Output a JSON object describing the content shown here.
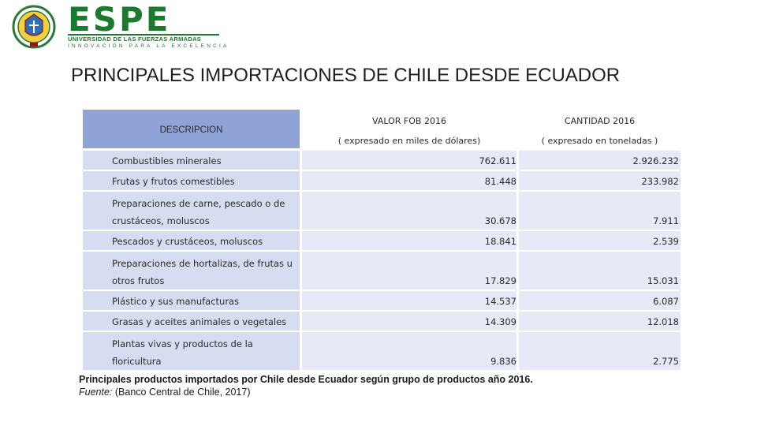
{
  "logo": {
    "wordmark": "ESPE",
    "university": "UNIVERSIDAD DE LAS FUERZAS ARMADAS",
    "motto": "INNOVACIÓN PARA LA EXCELENCIA",
    "brand_color": "#1a7a2e"
  },
  "title": "PRINCIPALES IMPORTACIONES DE CHILE DESDE ECUADOR",
  "table": {
    "header": {
      "description": "DESCRIPCION",
      "fob_line1": "VALOR FOB 2016",
      "fob_line2": "( expresado en miles de dólares)",
      "qty_line1": "CANTIDAD 2016",
      "qty_line2": "( expresado en toneladas )"
    },
    "rows": [
      {
        "desc1": "",
        "desc2": "Combustibles minerales",
        "fob": "762.611",
        "qty": "2.926.232"
      },
      {
        "desc1": "",
        "desc2": "Frutas y frutos comestibles",
        "fob": "81.448",
        "qty": "233.982"
      },
      {
        "desc1": "Preparaciones de carne, pescado o  de",
        "desc2": "crustáceos, moluscos",
        "fob": "30.678",
        "qty": "7.911"
      },
      {
        "desc1": "",
        "desc2": "Pescados y crustáceos, moluscos",
        "fob": "18.841",
        "qty": "2.539"
      },
      {
        "desc1": "Preparaciones de hortalizas, de frutas  u",
        "desc2": "otros frutos",
        "fob": "17.829",
        "qty": "15.031"
      },
      {
        "desc1": "",
        "desc2": "Plástico y sus manufacturas",
        "fob": "14.537",
        "qty": "6.087"
      },
      {
        "desc1": "",
        "desc2": "Grasas y aceites animales o vegetales",
        "fob": "14.309",
        "qty": "12.018"
      },
      {
        "desc1": "Plantas vivas y productos de la",
        "desc2": "floricultura",
        "fob": "9.836",
        "qty": "2.775"
      }
    ],
    "colors": {
      "header": "#8fa3d6",
      "desc_cell": "#d7ddf0",
      "value_cell": "#e6e9f6"
    }
  },
  "caption": "Principales productos importados por Chile desde Ecuador según grupo de productos año 2016.",
  "source": {
    "label": "Fuente:",
    "text": " (Banco Central de Chile, 2017)"
  }
}
